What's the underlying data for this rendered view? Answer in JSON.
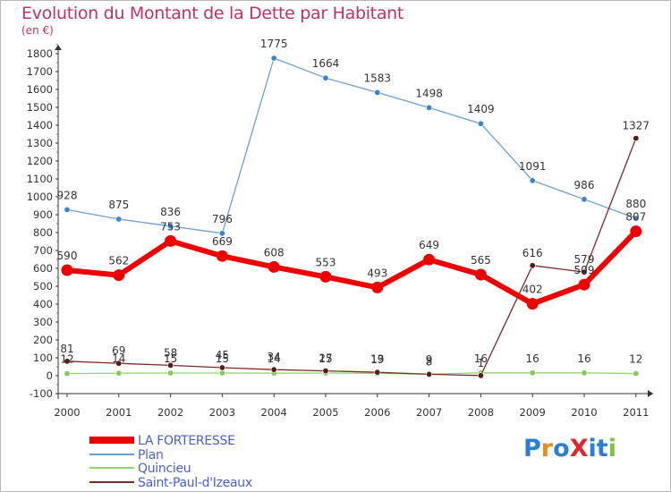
{
  "title": "Evolution du Montant de la Dette par Habitant",
  "subtitle": "(en €)",
  "logo": {
    "text": "ProXiti",
    "colors": [
      "#2a7fd2",
      "#f08a1c",
      "#e0262c",
      "#7cc33a"
    ]
  },
  "chart_data": {
    "type": "line",
    "x": [
      "2000",
      "2001",
      "2002",
      "2003",
      "2004",
      "2005",
      "2006",
      "2007",
      "2008",
      "2009",
      "2010",
      "2011"
    ],
    "ylim": [
      -100,
      1800
    ],
    "yticks": [
      "-100",
      "0",
      "100",
      "200",
      "300",
      "400",
      "500",
      "600",
      "700",
      "800",
      "900",
      "1000",
      "1100",
      "1200",
      "1300",
      "1400",
      "1500",
      "1600",
      "1700",
      "1800"
    ],
    "grid": false,
    "legend_position": "bottom-left",
    "series": [
      {
        "name": "LA FORTERESSE",
        "color": "#ee0000",
        "values": [
          590,
          562,
          753,
          669,
          608,
          553,
          493,
          649,
          565,
          402,
          509,
          807
        ],
        "labels": [
          "590",
          "562",
          "753",
          "669",
          "608",
          "553",
          "493",
          "649",
          "565",
          "402",
          "509",
          "807"
        ]
      },
      {
        "name": "Plan",
        "color": "#6a9fd6",
        "values": [
          928,
          875,
          836,
          796,
          1775,
          1664,
          1583,
          1498,
          1409,
          1091,
          986,
          880
        ],
        "labels": [
          "928",
          "875",
          "836",
          "796",
          "1775",
          "1664",
          "1583",
          "1498",
          "1409",
          "1091",
          "986",
          "880"
        ]
      },
      {
        "name": "Quincieu",
        "color": "#8fd66a",
        "values": [
          12,
          14,
          15,
          15,
          14,
          15,
          13,
          9,
          16,
          16,
          16,
          12
        ],
        "labels": [
          "12",
          "14",
          "15",
          "15",
          "14",
          "15",
          "13",
          "9",
          "16",
          "16",
          "16",
          "12"
        ]
      },
      {
        "name": "Saint-Paul-d'Izeaux",
        "color": "#7a2a2a",
        "values": [
          81,
          69,
          58,
          45,
          34,
          27,
          19,
          8,
          1,
          616,
          579,
          1327
        ],
        "labels": [
          "81",
          "69",
          "58",
          "45",
          "34",
          "27",
          "19",
          "8",
          "1",
          "616",
          "579",
          "1327"
        ]
      }
    ]
  }
}
